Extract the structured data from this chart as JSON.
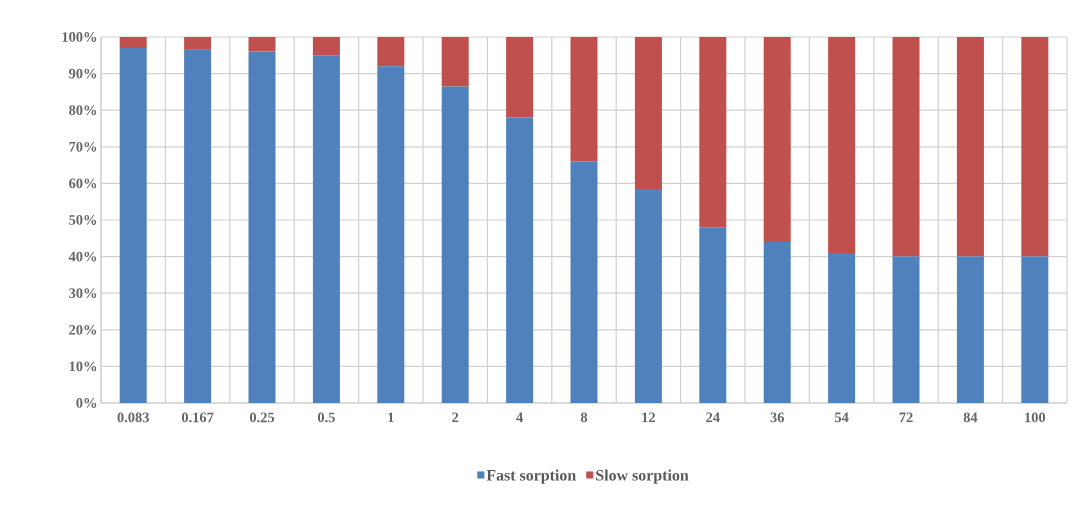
{
  "chart_data": {
    "type": "bar",
    "stacked": true,
    "categories": [
      "0.083",
      "0.167",
      "0.25",
      "0.5",
      "1",
      "2",
      "4",
      "8",
      "12",
      "24",
      "36",
      "54",
      "72",
      "84",
      "100"
    ],
    "series": [
      {
        "name": "Fast sorption",
        "color": "#4f81bd",
        "values": [
          97,
          96.5,
          96,
          95,
          92,
          86.5,
          78,
          66,
          58.5,
          48,
          44,
          41,
          40,
          40,
          40
        ]
      },
      {
        "name": "Slow sorption",
        "color": "#c0504d",
        "values": [
          3,
          3.5,
          4,
          5,
          8,
          13.5,
          22,
          34,
          41.5,
          52,
          56,
          59,
          60,
          60,
          60
        ]
      }
    ],
    "ylim": [
      0,
      100
    ],
    "yticks": [
      {
        "value": 0,
        "label": "0%"
      },
      {
        "value": 10,
        "label": "10%"
      },
      {
        "value": 20,
        "label": "20%"
      },
      {
        "value": 30,
        "label": "30%"
      },
      {
        "value": 40,
        "label": "40%"
      },
      {
        "value": 50,
        "label": "50%"
      },
      {
        "value": 60,
        "label": "60%"
      },
      {
        "value": 70,
        "label": "70%"
      },
      {
        "value": 80,
        "label": "80%"
      },
      {
        "value": 90,
        "label": "90%"
      },
      {
        "value": 100,
        "label": "100%"
      }
    ],
    "grid": true,
    "legend": "bottom"
  }
}
